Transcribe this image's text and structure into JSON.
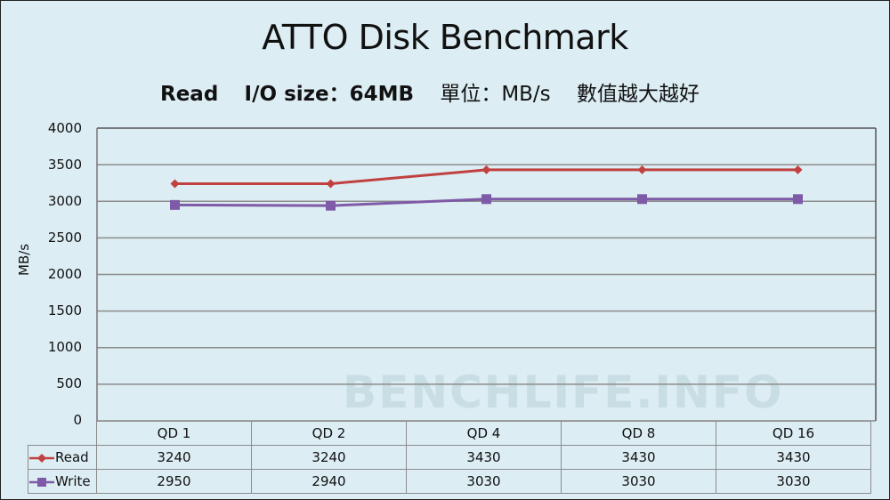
{
  "chart_data": {
    "type": "line",
    "title": "ATTO Disk Benchmark",
    "subtitle": {
      "mode": "Read",
      "io_size": "I/O size：64MB",
      "unit": "單位：MB/s",
      "note": "數值越大越好"
    },
    "xlabel": "",
    "ylabel": "MB/s",
    "ylim": [
      0,
      4000
    ],
    "yticks": [
      "4000",
      "3500",
      "3000",
      "2500",
      "2000",
      "1500",
      "1000",
      "500",
      "0"
    ],
    "grid": true,
    "legend_position": "data-table",
    "categories": [
      "QD 1",
      "QD 2",
      "QD 4",
      "QD 8",
      "QD 16"
    ],
    "series": [
      {
        "name": "Read",
        "color": "#c0413f",
        "marker": "diamond",
        "values": [
          3240,
          3240,
          3430,
          3430,
          3430
        ]
      },
      {
        "name": "Write",
        "color": "#7f5aa8",
        "marker": "square",
        "values": [
          2950,
          2940,
          3030,
          3030,
          3030
        ]
      }
    ],
    "table_values": {
      "Read": [
        "3240",
        "3240",
        "3430",
        "3430",
        "3430"
      ],
      "Write": [
        "2950",
        "2940",
        "3030",
        "3030",
        "3030"
      ]
    }
  },
  "watermark": "BENCHLIFE.INFO",
  "colors": {
    "background": "#dcedf3",
    "gridline": "#8c8c8c",
    "read": "#c0413f",
    "write": "#7f5aa8"
  }
}
